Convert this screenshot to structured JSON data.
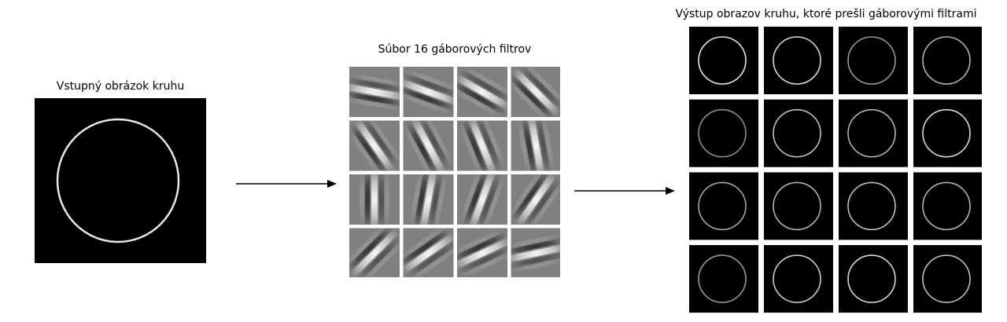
{
  "labels": {
    "input": "Vstupný obrázok kruhu",
    "filters": "Súbor 16 gáborových filtrov",
    "output": "Výstup obrazov kruhu, ktoré prešli gáborovými filtrami"
  },
  "filters": {
    "count": 16,
    "orientations_deg": [
      10,
      20,
      30,
      45,
      55,
      62,
      68,
      80,
      90,
      100,
      110,
      125,
      135,
      145,
      155,
      168
    ]
  },
  "outputs": {
    "count": 16,
    "brightness": [
      0.9,
      0.85,
      0.6,
      0.7,
      0.55,
      0.75,
      0.7,
      0.85,
      0.65,
      0.7,
      0.75,
      0.7,
      0.6,
      0.8,
      0.85,
      0.75
    ]
  },
  "colors": {
    "background": "#ffffff",
    "panel": "#000000",
    "filter_gray": "#808080",
    "arrow": "#000000"
  }
}
